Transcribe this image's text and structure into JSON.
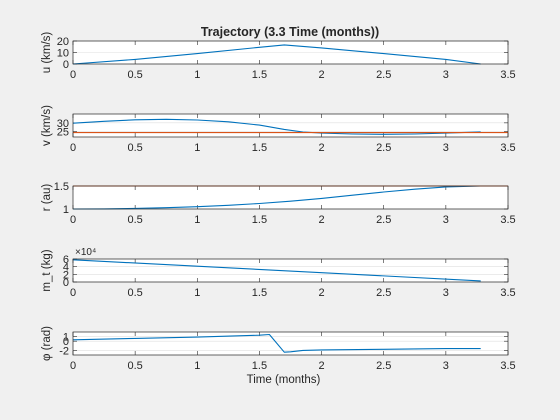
{
  "figure": {
    "title": "Trajectory (3.3 Time (months))"
  },
  "chart_data": [
    {
      "type": "line",
      "ylabel": "u (km/s)",
      "xlabel": "",
      "xlim": [
        0,
        3.5
      ],
      "ylim": [
        0,
        20
      ],
      "xticks": [
        "0",
        "0.5",
        "1",
        "1.5",
        "2",
        "2.5",
        "3",
        "3.5"
      ],
      "yticks": [
        "0",
        "10",
        "20"
      ],
      "grid": "y",
      "series": [
        {
          "color": "#0072bd",
          "x": [
            0,
            0.5,
            1.0,
            1.5,
            1.7,
            2.0,
            2.5,
            3.0,
            3.28
          ],
          "y": [
            0,
            4,
            9,
            14.5,
            16.6,
            14,
            9,
            4,
            0
          ]
        }
      ]
    },
    {
      "type": "line",
      "ylabel": "v (km/s)",
      "xlabel": "",
      "xlim": [
        0,
        3.5
      ],
      "ylim": [
        22,
        35
      ],
      "xticks": [
        "0",
        "0.5",
        "1",
        "1.5",
        "2",
        "2.5",
        "3",
        "3.5"
      ],
      "yticks": [
        "25",
        "30"
      ],
      "grid": "y",
      "series": [
        {
          "color": "#0072bd",
          "x": [
            0,
            0.25,
            0.5,
            0.75,
            1.0,
            1.25,
            1.5,
            1.7,
            1.85,
            2.0,
            2.25,
            2.5,
            2.75,
            3.0,
            3.28
          ],
          "y": [
            29.8,
            30.9,
            31.7,
            32.0,
            31.6,
            30.6,
            28.7,
            26.3,
            24.8,
            24.2,
            23.7,
            23.5,
            23.7,
            24.2,
            24.9
          ]
        },
        {
          "color": "#d95319",
          "x": [
            0,
            3.5
          ],
          "y": [
            24.5,
            24.5
          ]
        }
      ]
    },
    {
      "type": "line",
      "ylabel": "r (au)",
      "xlabel": "",
      "xlim": [
        0,
        3.5
      ],
      "ylim": [
        1,
        1.5
      ],
      "xticks": [
        "0",
        "0.5",
        "1",
        "1.5",
        "2",
        "2.5",
        "3",
        "3.5"
      ],
      "yticks": [
        "1",
        "1.5"
      ],
      "grid": "y",
      "series": [
        {
          "color": "#0072bd",
          "x": [
            0,
            0.25,
            0.5,
            0.75,
            1.0,
            1.25,
            1.5,
            1.75,
            2.0,
            2.25,
            2.5,
            2.75,
            3.0,
            3.28
          ],
          "y": [
            1.0,
            1.003,
            1.012,
            1.028,
            1.05,
            1.08,
            1.12,
            1.17,
            1.23,
            1.3,
            1.37,
            1.43,
            1.48,
            1.5
          ]
        },
        {
          "color": "#d95319",
          "x": [
            0,
            3.5
          ],
          "y": [
            1.5,
            1.5
          ]
        }
      ]
    },
    {
      "type": "line",
      "ylabel": "m_t (kg)",
      "xlabel": "",
      "exponent": "×10⁴",
      "xlim": [
        0,
        3.5
      ],
      "ylim": [
        0,
        6
      ],
      "xticks": [
        "0",
        "0.5",
        "1",
        "1.5",
        "2",
        "2.5",
        "3",
        "3.5"
      ],
      "yticks": [
        "0",
        "2",
        "4",
        "6"
      ],
      "grid": "y",
      "series": [
        {
          "color": "#0072bd",
          "x": [
            0,
            3.28
          ],
          "y": [
            5.8,
            0.3
          ]
        }
      ]
    },
    {
      "type": "line",
      "ylabel": "φ (rad)",
      "xlabel": "Time (months)",
      "xlim": [
        0,
        3.5
      ],
      "ylim": [
        -3,
        2
      ],
      "xticks": [
        "0",
        "0.5",
        "1",
        "1.5",
        "2",
        "2.5",
        "3",
        "3.5"
      ],
      "yticks": [
        "-2",
        "0",
        "1"
      ],
      "grid": "y",
      "series": [
        {
          "color": "#0072bd",
          "x": [
            0,
            0.5,
            1.0,
            1.5,
            1.58,
            1.7,
            1.75,
            1.85,
            2.0,
            2.5,
            3.0,
            3.28
          ],
          "y": [
            0.3,
            0.6,
            0.9,
            1.3,
            1.45,
            -2.4,
            -2.3,
            -2.0,
            -1.9,
            -1.75,
            -1.6,
            -1.6
          ]
        }
      ]
    }
  ]
}
